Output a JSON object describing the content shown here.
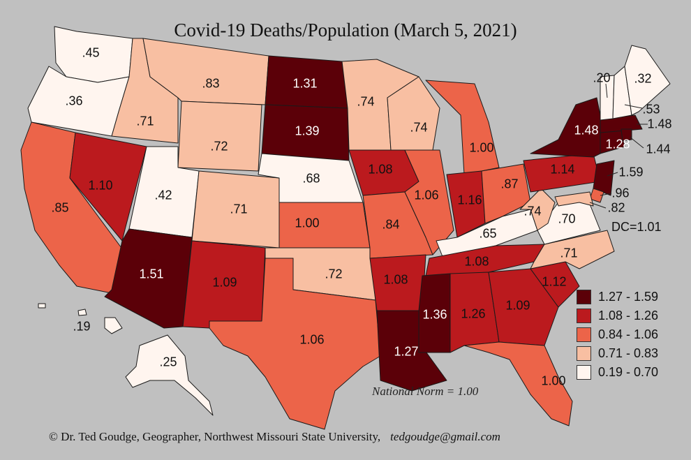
{
  "title": "Covid-19 Deaths/Population (March 5, 2021)",
  "national_norm": "National Norm = 1.00",
  "credit": "© Dr. Ted Goudge, Geographer,  Northwest Missouri State University,",
  "email": "tedgoudge@gmail.com",
  "dc_label": "DC=1.01",
  "colors": {
    "c5": "#5b0008",
    "c4": "#bb1a1e",
    "c3": "#ec6449",
    "c2": "#f8bfa2",
    "c1": "#fff5ef",
    "stroke": "#1a1a1a"
  },
  "legend": [
    {
      "label": "1.27 - 1.59",
      "color": "#5b0008"
    },
    {
      "label": "1.08 - 1.26",
      "color": "#bb1a1e"
    },
    {
      "label": "0.84 - 1.06",
      "color": "#ec6449"
    },
    {
      "label": "0.71 - 0.83",
      "color": "#f8bfa2"
    },
    {
      "label": "0.19 - 0.70",
      "color": "#fff5ef"
    }
  ],
  "states": {
    "WA": ".45",
    "OR": ".36",
    "CA": ".85",
    "NV": "1.10",
    "ID": ".71",
    "MT": ".83",
    "WY": ".72",
    "UT": ".42",
    "AZ": "1.51",
    "CO": ".71",
    "NM": "1.09",
    "ND": "1.31",
    "SD": "1.39",
    "NE": ".68",
    "KS": "1.00",
    "OK": ".72",
    "TX": "1.06",
    "MN": ".74",
    "IA": "1.08",
    "MO": ".84",
    "AR": "1.08",
    "LA": "1.27",
    "WI": ".74",
    "IL": "1.06",
    "MS": "1.36",
    "MI": "1.00",
    "IN": "1.16",
    "KY": ".65",
    "TN": "1.08",
    "AL": "1.26",
    "OH": ".87",
    "GA": "1.09",
    "FL": "1.00",
    "SC": "1.12",
    "NC": ".71",
    "VA": ".70",
    "WV": ".74",
    "PA": "1.14",
    "NY": "1.48",
    "VT": ".20",
    "NH": ".53",
    "ME": ".32",
    "MA": "1.48",
    "RI": "1.44",
    "CT": "1.28",
    "NJ": "1.59",
    "DE": ".96",
    "MD": ".82",
    "AK": ".25",
    "HI": ".19"
  }
}
